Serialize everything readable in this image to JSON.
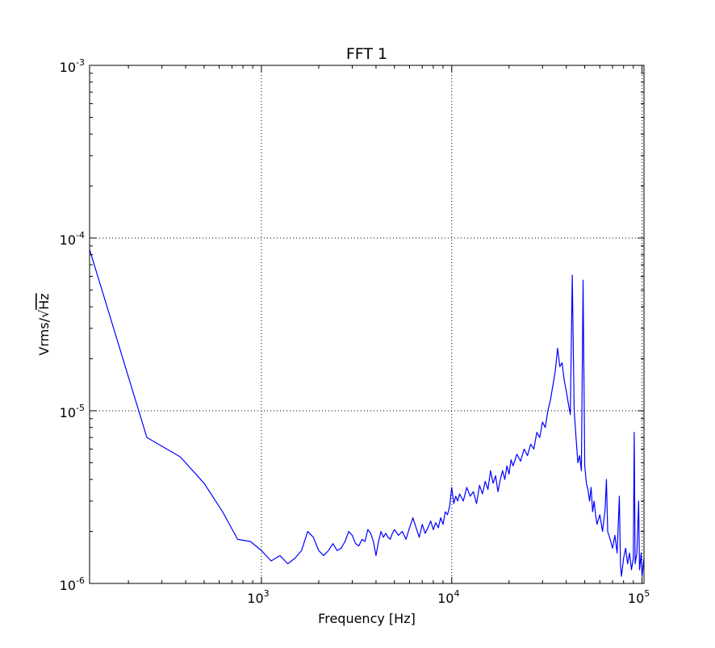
{
  "chart_data": {
    "type": "line",
    "title": "FFT 1",
    "xlabel": "Frequency [Hz]",
    "ylabel_prefix": "Vrms/",
    "ylabel_radical": "√",
    "ylabel_under_root": "Hz",
    "x_scale": "log",
    "y_scale": "log",
    "xlim": [
      125,
      102400
    ],
    "ylim": [
      1e-06,
      0.001
    ],
    "grid": true,
    "x_ticks": [
      {
        "value": 1000,
        "base": "10",
        "exp": "3"
      },
      {
        "value": 10000,
        "base": "10",
        "exp": "4"
      },
      {
        "value": 100000,
        "base": "10",
        "exp": "5"
      }
    ],
    "y_ticks": [
      {
        "value": 1e-06,
        "base": "10",
        "exp": "-6"
      },
      {
        "value": 1e-05,
        "base": "10",
        "exp": "-5"
      },
      {
        "value": 0.0001,
        "base": "10",
        "exp": "-4"
      },
      {
        "value": 0.001,
        "base": "10",
        "exp": "-3"
      }
    ],
    "line_color": "#0000ff",
    "series": [
      {
        "points": [
          [
            125,
            8.6e-05
          ],
          [
            250,
            7e-06
          ],
          [
            375,
            5.4e-06
          ],
          [
            500,
            3.8e-06
          ],
          [
            625,
            2.6e-06
          ],
          [
            750,
            1.8e-06
          ],
          [
            875,
            1.75e-06
          ],
          [
            1000,
            1.55e-06
          ],
          [
            1125,
            1.35e-06
          ],
          [
            1250,
            1.45e-06
          ],
          [
            1375,
            1.3e-06
          ],
          [
            1500,
            1.4e-06
          ],
          [
            1625,
            1.55e-06
          ],
          [
            1750,
            2e-06
          ],
          [
            1875,
            1.85e-06
          ],
          [
            2000,
            1.55e-06
          ],
          [
            2125,
            1.45e-06
          ],
          [
            2250,
            1.55e-06
          ],
          [
            2375,
            1.7e-06
          ],
          [
            2500,
            1.55e-06
          ],
          [
            2625,
            1.6e-06
          ],
          [
            2750,
            1.75e-06
          ],
          [
            2875,
            2e-06
          ],
          [
            3000,
            1.9e-06
          ],
          [
            3125,
            1.7e-06
          ],
          [
            3250,
            1.65e-06
          ],
          [
            3375,
            1.8e-06
          ],
          [
            3500,
            1.75e-06
          ],
          [
            3625,
            2.05e-06
          ],
          [
            3750,
            1.95e-06
          ],
          [
            3875,
            1.75e-06
          ],
          [
            4000,
            1.45e-06
          ],
          [
            4125,
            1.75e-06
          ],
          [
            4250,
            2e-06
          ],
          [
            4375,
            1.85e-06
          ],
          [
            4500,
            1.95e-06
          ],
          [
            4625,
            1.85e-06
          ],
          [
            4750,
            1.8e-06
          ],
          [
            4875,
            1.95e-06
          ],
          [
            5000,
            2.05e-06
          ],
          [
            5250,
            1.9e-06
          ],
          [
            5500,
            2e-06
          ],
          [
            5750,
            1.8e-06
          ],
          [
            6000,
            2.1e-06
          ],
          [
            6250,
            2.4e-06
          ],
          [
            6500,
            2.1e-06
          ],
          [
            6750,
            1.85e-06
          ],
          [
            7000,
            2.2e-06
          ],
          [
            7250,
            1.95e-06
          ],
          [
            7500,
            2.1e-06
          ],
          [
            7750,
            2.3e-06
          ],
          [
            8000,
            2.05e-06
          ],
          [
            8250,
            2.25e-06
          ],
          [
            8500,
            2.1e-06
          ],
          [
            8750,
            2.4e-06
          ],
          [
            9000,
            2.2e-06
          ],
          [
            9250,
            2.6e-06
          ],
          [
            9500,
            2.5e-06
          ],
          [
            9750,
            2.8e-06
          ],
          [
            10000,
            3.6e-06
          ],
          [
            10250,
            2.9e-06
          ],
          [
            10500,
            3.2e-06
          ],
          [
            10750,
            3e-06
          ],
          [
            11000,
            3.3e-06
          ],
          [
            11500,
            3e-06
          ],
          [
            12000,
            3.6e-06
          ],
          [
            12500,
            3.2e-06
          ],
          [
            13000,
            3.4e-06
          ],
          [
            13500,
            2.9e-06
          ],
          [
            14000,
            3.7e-06
          ],
          [
            14500,
            3.3e-06
          ],
          [
            15000,
            3.9e-06
          ],
          [
            15500,
            3.5e-06
          ],
          [
            16000,
            4.5e-06
          ],
          [
            16500,
            3.8e-06
          ],
          [
            17000,
            4.2e-06
          ],
          [
            17500,
            3.4e-06
          ],
          [
            18000,
            4e-06
          ],
          [
            18500,
            4.5e-06
          ],
          [
            19000,
            4e-06
          ],
          [
            19500,
            4.8e-06
          ],
          [
            20000,
            4.3e-06
          ],
          [
            20500,
            5.2e-06
          ],
          [
            21000,
            4.8e-06
          ],
          [
            22000,
            5.6e-06
          ],
          [
            23000,
            5.1e-06
          ],
          [
            24000,
            6e-06
          ],
          [
            25000,
            5.5e-06
          ],
          [
            26000,
            6.4e-06
          ],
          [
            27000,
            6e-06
          ],
          [
            28000,
            7.5e-06
          ],
          [
            29000,
            7e-06
          ],
          [
            30000,
            8.6e-06
          ],
          [
            31000,
            8e-06
          ],
          [
            32000,
            1e-05
          ],
          [
            33000,
            1.15e-05
          ],
          [
            34000,
            1.4e-05
          ],
          [
            35000,
            1.7e-05
          ],
          [
            36000,
            2.3e-05
          ],
          [
            37000,
            1.8e-05
          ],
          [
            38000,
            1.9e-05
          ],
          [
            39000,
            1.5e-05
          ],
          [
            40000,
            1.3e-05
          ],
          [
            41000,
            1.1e-05
          ],
          [
            42000,
            9.5e-06
          ],
          [
            43000,
            6.1e-05
          ],
          [
            44000,
            1e-05
          ],
          [
            45000,
            7e-06
          ],
          [
            46000,
            5e-06
          ],
          [
            47000,
            5.5e-06
          ],
          [
            48000,
            4.5e-06
          ],
          [
            49000,
            5.7e-05
          ],
          [
            50000,
            4.8e-06
          ],
          [
            51000,
            3.8e-06
          ],
          [
            52000,
            3.5e-06
          ],
          [
            53000,
            3e-06
          ],
          [
            54000,
            3.6e-06
          ],
          [
            55000,
            2.6e-06
          ],
          [
            56000,
            3e-06
          ],
          [
            57000,
            2.5e-06
          ],
          [
            58000,
            2.2e-06
          ],
          [
            60000,
            2.5e-06
          ],
          [
            62000,
            2e-06
          ],
          [
            64000,
            2.7e-06
          ],
          [
            65000,
            4e-06
          ],
          [
            66000,
            2e-06
          ],
          [
            68000,
            1.8e-06
          ],
          [
            70000,
            1.6e-06
          ],
          [
            72000,
            1.9e-06
          ],
          [
            74000,
            1.5e-06
          ],
          [
            76000,
            3.2e-06
          ],
          [
            77000,
            1.3e-06
          ],
          [
            78000,
            1.1e-06
          ],
          [
            80000,
            1.4e-06
          ],
          [
            82000,
            1.6e-06
          ],
          [
            84000,
            1.3e-06
          ],
          [
            86000,
            1.5e-06
          ],
          [
            88000,
            1.2e-06
          ],
          [
            90000,
            1.4e-06
          ],
          [
            91000,
            7.5e-06
          ],
          [
            92000,
            1.3e-06
          ],
          [
            94000,
            1.5e-06
          ],
          [
            96000,
            3e-06
          ],
          [
            97000,
            1.2e-06
          ],
          [
            99000,
            1.5e-06
          ],
          [
            100000,
            1.1e-06
          ],
          [
            102400,
            1.4e-06
          ]
        ]
      }
    ]
  }
}
